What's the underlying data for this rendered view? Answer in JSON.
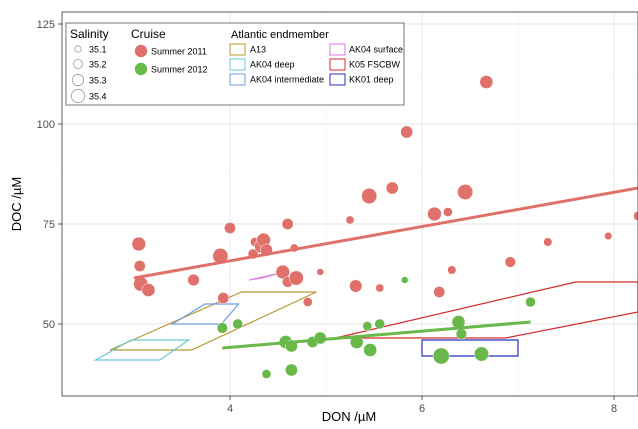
{
  "chart_data": {
    "type": "scatter",
    "xlabel": "DON /µM",
    "ylabel": "DOC /µM",
    "xlim": [
      2.25,
      8.25
    ],
    "ylim": [
      32,
      128
    ],
    "xticks": [
      4,
      6,
      8
    ],
    "yticks": [
      50,
      75,
      100,
      125
    ],
    "grid": true,
    "legend_position": "top-left",
    "legend": {
      "salinity_title": "Salinity",
      "salinity_levels": [
        "35.1",
        "35.2",
        "35.3",
        "35.4"
      ],
      "cruise_title": "Cruise",
      "endmember_title": "Atlantic endmember"
    },
    "series": [
      {
        "name": "Summer 2011",
        "color": "#e0706a",
        "points": [
          {
            "x": 3.05,
            "y": 70.0,
            "s": 35.3
          },
          {
            "x": 3.06,
            "y": 64.5,
            "s": 35.22
          },
          {
            "x": 3.07,
            "y": 60.0,
            "s": 35.32
          },
          {
            "x": 3.15,
            "y": 58.5,
            "s": 35.28
          },
          {
            "x": 3.62,
            "y": 61.0,
            "s": 35.23
          },
          {
            "x": 3.9,
            "y": 67.0,
            "s": 35.35
          },
          {
            "x": 3.93,
            "y": 56.5,
            "s": 35.22
          },
          {
            "x": 4.0,
            "y": 74.0,
            "s": 35.22
          },
          {
            "x": 4.24,
            "y": 67.5,
            "s": 35.18
          },
          {
            "x": 4.26,
            "y": 70.5,
            "s": 35.15
          },
          {
            "x": 4.33,
            "y": 69.5,
            "s": 35.32
          },
          {
            "x": 4.35,
            "y": 71.0,
            "s": 35.3
          },
          {
            "x": 4.38,
            "y": 68.5,
            "s": 35.25
          },
          {
            "x": 4.55,
            "y": 63.0,
            "s": 35.3
          },
          {
            "x": 4.6,
            "y": 60.5,
            "s": 35.2
          },
          {
            "x": 4.6,
            "y": 75.0,
            "s": 35.22
          },
          {
            "x": 4.67,
            "y": 69.0,
            "s": 35.12
          },
          {
            "x": 4.69,
            "y": 61.5,
            "s": 35.32
          },
          {
            "x": 4.81,
            "y": 55.5,
            "s": 35.15
          },
          {
            "x": 4.94,
            "y": 63.0,
            "s": 35.08
          },
          {
            "x": 5.25,
            "y": 76.0,
            "s": 35.12
          },
          {
            "x": 5.31,
            "y": 59.5,
            "s": 35.26
          },
          {
            "x": 5.45,
            "y": 82.0,
            "s": 35.35
          },
          {
            "x": 5.56,
            "y": 59.0,
            "s": 35.12
          },
          {
            "x": 5.69,
            "y": 84.0,
            "s": 35.25
          },
          {
            "x": 5.84,
            "y": 98.0,
            "s": 35.25
          },
          {
            "x": 6.13,
            "y": 77.5,
            "s": 35.3
          },
          {
            "x": 6.18,
            "y": 58.0,
            "s": 35.22
          },
          {
            "x": 6.27,
            "y": 78.0,
            "s": 35.15
          },
          {
            "x": 6.31,
            "y": 63.5,
            "s": 35.13
          },
          {
            "x": 6.45,
            "y": 83.0,
            "s": 35.35
          },
          {
            "x": 6.67,
            "y": 110.5,
            "s": 35.28
          },
          {
            "x": 6.92,
            "y": 65.5,
            "s": 35.2
          },
          {
            "x": 7.31,
            "y": 70.5,
            "s": 35.13
          },
          {
            "x": 7.94,
            "y": 72.0,
            "s": 35.1
          },
          {
            "x": 8.25,
            "y": 77.0,
            "s": 35.15
          }
        ],
        "trend": {
          "x": [
            3.0,
            8.25
          ],
          "y": [
            61.5,
            84.0
          ]
        }
      },
      {
        "name": "Summer 2012",
        "color": "#68b94a",
        "points": [
          {
            "x": 3.92,
            "y": 49.0,
            "s": 35.2
          },
          {
            "x": 4.08,
            "y": 50.0,
            "s": 35.18
          },
          {
            "x": 4.38,
            "y": 37.5,
            "s": 35.15
          },
          {
            "x": 4.58,
            "y": 45.5,
            "s": 35.28
          },
          {
            "x": 4.64,
            "y": 44.5,
            "s": 35.25
          },
          {
            "x": 4.64,
            "y": 38.5,
            "s": 35.25
          },
          {
            "x": 4.86,
            "y": 45.5,
            "s": 35.22
          },
          {
            "x": 4.94,
            "y": 46.5,
            "s": 35.25
          },
          {
            "x": 5.32,
            "y": 45.5,
            "s": 35.28
          },
          {
            "x": 5.43,
            "y": 49.5,
            "s": 35.15
          },
          {
            "x": 5.46,
            "y": 43.5,
            "s": 35.28
          },
          {
            "x": 5.56,
            "y": 50.0,
            "s": 35.18
          },
          {
            "x": 5.82,
            "y": 61.0,
            "s": 35.08
          },
          {
            "x": 6.2,
            "y": 42.0,
            "s": 35.38
          },
          {
            "x": 6.38,
            "y": 50.5,
            "s": 35.28
          },
          {
            "x": 6.41,
            "y": 47.5,
            "s": 35.2
          },
          {
            "x": 6.62,
            "y": 42.5,
            "s": 35.32
          },
          {
            "x": 7.13,
            "y": 55.5,
            "s": 35.18
          }
        ],
        "trend": {
          "x": [
            3.92,
            7.13
          ],
          "y": [
            44.0,
            50.5
          ]
        }
      }
    ],
    "endmembers": [
      {
        "name": "A13",
        "color": "#b8982e",
        "polygon": [
          [
            2.75,
            43.5
          ],
          [
            3.6,
            43.5
          ],
          [
            4.9,
            58.0
          ],
          [
            4.12,
            58.0
          ]
        ]
      },
      {
        "name": "AK04 deep",
        "color": "#6ac9cf",
        "polygon": [
          [
            2.6,
            41.0
          ],
          [
            3.27,
            41.0
          ],
          [
            3.57,
            46.0
          ],
          [
            2.97,
            46.0
          ]
        ]
      },
      {
        "name": "AK04 intermediate",
        "color": "#6e9ce6",
        "polygon": [
          [
            3.4,
            50.0
          ],
          [
            3.91,
            50.0
          ],
          [
            4.09,
            55.0
          ],
          [
            3.74,
            55.0
          ]
        ]
      },
      {
        "name": "AK04 surface",
        "color": "#de78e0",
        "polygon": [
          [
            4.2,
            61.0
          ],
          [
            4.48,
            62.5
          ],
          [
            4.33,
            61.5
          ]
        ]
      },
      {
        "name": "K05 FSCBW",
        "color": "#d42a2a",
        "polygon": [
          [
            5.1,
            46.5
          ],
          [
            7.6,
            60.5
          ],
          [
            8.25,
            60.5
          ],
          [
            8.25,
            53.0
          ],
          [
            6.87,
            46.5
          ]
        ]
      },
      {
        "name": "KK01 deep",
        "color": "#2b2fc2",
        "polygon": [
          [
            6.0,
            42.0
          ],
          [
            7.0,
            42.0
          ],
          [
            7.0,
            46.0
          ],
          [
            6.0,
            46.0
          ]
        ]
      }
    ]
  }
}
